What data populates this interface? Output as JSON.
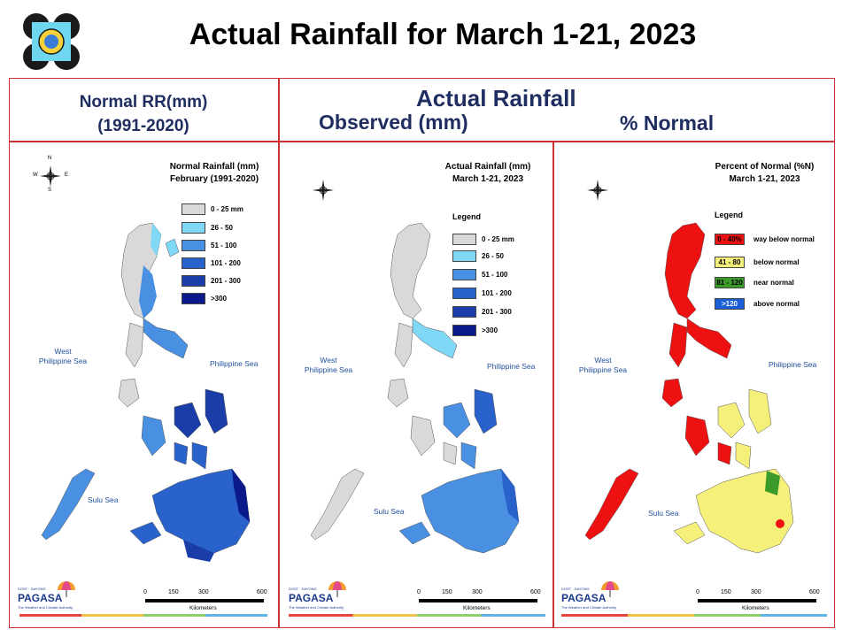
{
  "title": "Actual Rainfall for March 1-21, 2023",
  "headers": {
    "left_line1": "Normal RR(mm)",
    "left_line2": "(1991-2020)",
    "actual": "Actual Rainfall",
    "observed": "Observed (mm)",
    "percent": "% Normal"
  },
  "panels": [
    {
      "title_line1": "Normal Rainfall (mm)",
      "title_line2": "February (1991-2020)",
      "legend_title": "",
      "legend": [
        {
          "label": "0 - 25 mm",
          "color": "#d9d9d9"
        },
        {
          "label": "26 - 50",
          "color": "#7fd8f5"
        },
        {
          "label": "51 - 100",
          "color": "#4a90e2"
        },
        {
          "label": "101 - 200",
          "color": "#2a62cc"
        },
        {
          "label": "201 - 300",
          "color": "#1a3da8"
        },
        {
          "label": ">300",
          "color": "#0b1a8a"
        }
      ]
    },
    {
      "title_line1": "Actual Rainfall (mm)",
      "title_line2": "March 1-21, 2023",
      "legend_title": "Legend",
      "legend": [
        {
          "label": "0 - 25 mm",
          "color": "#d9d9d9"
        },
        {
          "label": "26 - 50",
          "color": "#7fd8f5"
        },
        {
          "label": "51 - 100",
          "color": "#4a90e2"
        },
        {
          "label": "101 - 200",
          "color": "#2a62cc"
        },
        {
          "label": "201 - 300",
          "color": "#1a3da8"
        },
        {
          "label": ">300",
          "color": "#0b1a8a"
        }
      ]
    },
    {
      "title_line1": "Percent of Normal (%N)",
      "title_line2": "March 1-21, 2023",
      "legend_title": "Legend",
      "legend": [
        {
          "label": "0 - 40%",
          "desc": "way below normal",
          "color": "#ee1111"
        },
        {
          "label": "41 - 80",
          "desc": "below normal",
          "color": "#f5f07a"
        },
        {
          "label": "81 - 120",
          "desc": "near normal",
          "color": "#3a9a2a"
        },
        {
          "label": ">120",
          "desc": "above normal",
          "color": "#1a5fd8"
        }
      ]
    }
  ],
  "seas": {
    "west_line1": "West",
    "west_line2": "Philippine Sea",
    "philippine": "Philippine Sea",
    "sulu": "Sulu Sea"
  },
  "scale": {
    "ticks": [
      "0",
      "150",
      "300",
      "600"
    ],
    "unit": "Kilometers"
  },
  "brand": {
    "name": "PAGASA",
    "tagline": "DOST · DAYONG",
    "sub": "The Weather and Climate Authority"
  },
  "compass": {
    "n": "N",
    "s": "S",
    "e": "E",
    "w": "W"
  },
  "colors": {
    "frame": "#cc3333",
    "header_text": "#1f2d60",
    "land_gray": "#d9d9d9",
    "footer": [
      "#e5443f",
      "#f2c14a",
      "#8fcf6b",
      "#5fb4e6"
    ]
  }
}
